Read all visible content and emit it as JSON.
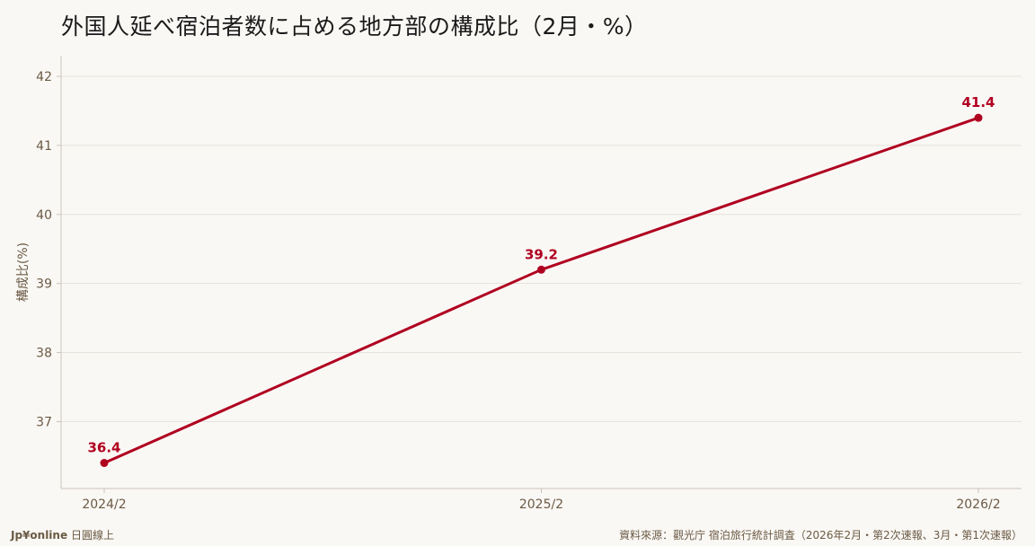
{
  "title": "外国人延べ宿泊者数に占める地方部の構成比（2月・%）",
  "footer": {
    "brand": "Jp¥online",
    "brand_suffix": "日圓線上",
    "source": "資料來源：觀光庁 宿泊旅行統計調査（2026年2月・第2次速報、3月・第1次速報）"
  },
  "colors": {
    "line": "#b00020",
    "axis_text": "#6b5a44",
    "grid": "#e6e2dc",
    "background": "#faf8f5"
  },
  "chart_data": {
    "type": "line",
    "title": "外国人延べ宿泊者数に占める地方部の構成比（2月・%）",
    "xlabel": "",
    "ylabel": "構成比(%)",
    "categories": [
      "2024/2",
      "2025/2",
      "2026/2"
    ],
    "series": [
      {
        "values": [
          36.4,
          39.2,
          41.4
        ],
        "data_labels": [
          "36.4",
          "39.2",
          "41.4"
        ]
      }
    ],
    "yticks": [
      37,
      38,
      39,
      40,
      41,
      42
    ],
    "ylim": [
      36.03,
      42.3
    ],
    "grid": true,
    "legend": "none"
  }
}
